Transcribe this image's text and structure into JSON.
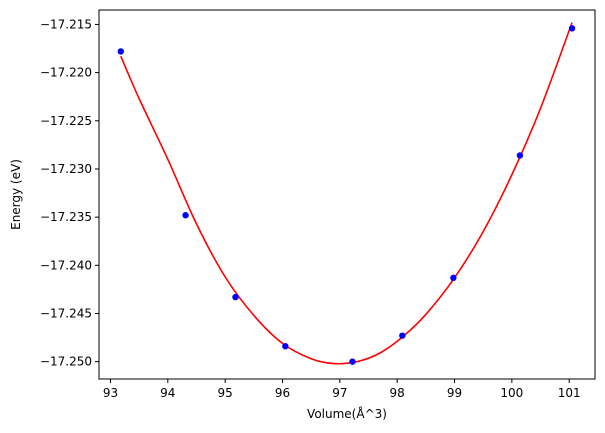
{
  "chart_data": {
    "type": "scatter",
    "title": "",
    "xlabel": "Volume(Å^3)",
    "ylabel": "Energy (eV)",
    "xlim": [
      92.8,
      101.45
    ],
    "ylim": [
      -17.2518,
      -17.2135
    ],
    "grid": false,
    "x_ticks": [
      93,
      94,
      95,
      96,
      97,
      98,
      99,
      100,
      101
    ],
    "x_tick_labels": [
      "93",
      "94",
      "95",
      "96",
      "97",
      "98",
      "99",
      "100",
      "101"
    ],
    "y_ticks": [
      -17.215,
      -17.22,
      -17.225,
      -17.23,
      -17.235,
      -17.24,
      -17.245,
      -17.25
    ],
    "y_tick_labels": [
      "−17.215",
      "−17.220",
      "−17.225",
      "−17.230",
      "−17.235",
      "−17.240",
      "−17.245",
      "−17.250"
    ],
    "series": [
      {
        "kind": "scatter",
        "color": "#0000ff",
        "x": [
          93.18,
          94.31,
          95.18,
          96.05,
          97.22,
          98.09,
          98.98,
          100.14,
          101.05
        ],
        "y": [
          -17.2178,
          -17.2348,
          -17.2433,
          -17.2484,
          -17.25,
          -17.2473,
          -17.2413,
          -17.2286,
          -17.2154
        ]
      },
      {
        "kind": "line",
        "color": "#ff0000",
        "x": [
          93.18,
          93.5,
          94.0,
          94.5,
          95.0,
          95.5,
          96.0,
          96.5,
          96.9,
          97.3,
          97.7,
          98.1,
          98.5,
          99.0,
          99.5,
          100.0,
          100.5,
          101.05
        ],
        "y": [
          -17.2183,
          -17.2227,
          -17.229,
          -17.2357,
          -17.2412,
          -17.2452,
          -17.2481,
          -17.2497,
          -17.2502,
          -17.25,
          -17.2491,
          -17.2474,
          -17.2451,
          -17.2413,
          -17.2365,
          -17.2306,
          -17.2237,
          -17.2148
        ]
      }
    ]
  }
}
